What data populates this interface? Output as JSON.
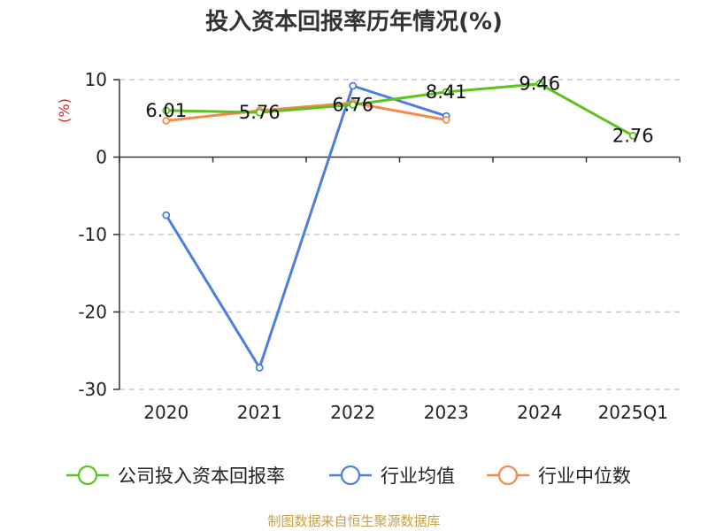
{
  "title": "投入资本回报率历年情况(%)",
  "source": "制图数据来自恒生聚源数据库",
  "chart_data": {
    "type": "line",
    "title": "投入资本回报率历年情况(%)",
    "ylabel": "(%)",
    "xlabel": "",
    "categories": [
      "2020",
      "2021",
      "2022",
      "2023",
      "2024",
      "2025Q1"
    ],
    "ylim": [
      -30,
      10
    ],
    "yticks": [
      10,
      0,
      -10,
      -20,
      -30
    ],
    "grid": true,
    "legend_position": "bottom",
    "series": [
      {
        "name": "公司投入资本回报率",
        "color": "#5dc21e",
        "values": [
          6.01,
          5.76,
          6.76,
          8.41,
          9.46,
          2.76
        ],
        "labels": [
          "6.01",
          "5.76",
          "6.76",
          "8.41",
          "9.46",
          "2.76"
        ]
      },
      {
        "name": "行业均值",
        "color": "#4a7fde",
        "values": [
          -7.5,
          -27.2,
          9.2,
          5.3,
          null,
          null
        ]
      },
      {
        "name": "行业中位数",
        "color": "#f5894a",
        "values": [
          4.7,
          6.0,
          7.0,
          4.8,
          null,
          null
        ]
      }
    ]
  }
}
